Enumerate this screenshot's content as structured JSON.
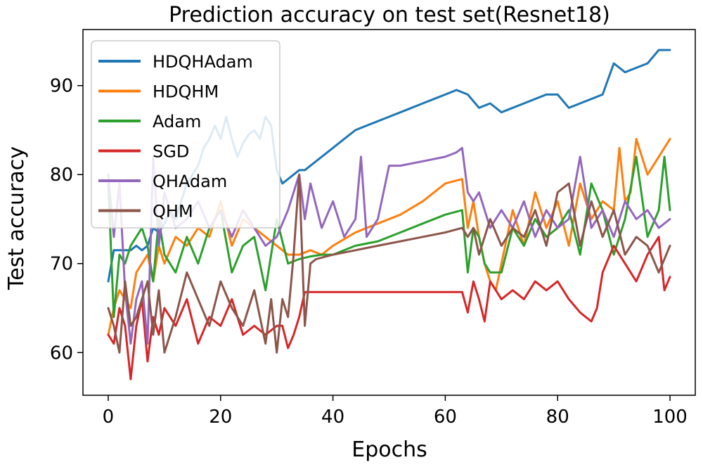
{
  "chart_data": {
    "type": "line",
    "title": "Prediction accuracy on test set(Resnet18)",
    "xlabel": "Epochs",
    "ylabel": "Test accuracy",
    "xlim": [
      -4.5,
      104.5
    ],
    "ylim": [
      55.2,
      96.3
    ],
    "xticks": [
      0,
      20,
      40,
      60,
      80,
      100
    ],
    "yticks": [
      60,
      70,
      80,
      90
    ],
    "grid": false,
    "legend_position": "upper-left",
    "series": [
      {
        "name": "HDQHAdam",
        "color": "#1f77b4",
        "x": [
          0,
          1,
          2,
          3,
          4,
          5,
          6,
          7,
          8,
          9,
          10,
          11,
          12,
          13,
          14,
          15,
          16,
          17,
          18,
          19,
          20,
          21,
          22,
          23,
          24,
          25,
          26,
          27,
          28,
          29,
          30,
          31,
          32,
          33,
          34,
          35,
          36,
          38,
          40,
          42,
          44,
          46,
          48,
          50,
          52,
          54,
          56,
          58,
          60,
          62,
          64,
          66,
          68,
          70,
          72,
          74,
          76,
          78,
          80,
          82,
          84,
          86,
          88,
          90,
          92,
          94,
          96,
          98,
          100
        ],
        "values": [
          68,
          71.5,
          71.5,
          71.5,
          71.5,
          72,
          71.5,
          72,
          74,
          73.5,
          74.5,
          76,
          75,
          77,
          79,
          80,
          81,
          83,
          84,
          85.5,
          84,
          86.5,
          84,
          82,
          83.5,
          84.5,
          85,
          84,
          86.5,
          85.5,
          80.5,
          79,
          79.5,
          80,
          80.5,
          80.5,
          81,
          82,
          83,
          84,
          85,
          85.5,
          86,
          86.5,
          87,
          87.5,
          88,
          88.5,
          89,
          89.5,
          89,
          87.5,
          88,
          87,
          87.5,
          88,
          88.5,
          89,
          89,
          87.5,
          88,
          88.5,
          89,
          92.5,
          91.5,
          92,
          92.5,
          94,
          94
        ]
      },
      {
        "name": "HDQHM",
        "color": "#ff7f0e",
        "x": [
          0,
          1,
          2,
          3,
          4,
          5,
          6,
          7,
          8,
          9,
          10,
          12,
          14,
          16,
          18,
          20,
          22,
          24,
          26,
          28,
          30,
          32,
          34,
          36,
          38,
          40,
          44,
          48,
          52,
          56,
          60,
          63,
          64,
          65,
          66,
          67,
          68,
          69,
          70,
          72,
          74,
          76,
          78,
          80,
          82,
          84,
          86,
          88,
          90,
          91,
          92,
          93,
          94,
          96,
          98,
          100
        ],
        "values": [
          62,
          65,
          67,
          66,
          65,
          69,
          70,
          71,
          68,
          72,
          70,
          73,
          72,
          74,
          73,
          77,
          72,
          75,
          74,
          73,
          72,
          71,
          71,
          71.5,
          71,
          72,
          73.5,
          74.5,
          75.5,
          77,
          79,
          79.5,
          74,
          77,
          73,
          70,
          68,
          67,
          70,
          76,
          72,
          78,
          74,
          77,
          72,
          79,
          75,
          77,
          76,
          83,
          77,
          78,
          84,
          80,
          82,
          84
        ]
      },
      {
        "name": "Adam",
        "color": "#2ca02c",
        "x": [
          0,
          1,
          2,
          3,
          4,
          5,
          6,
          7,
          8,
          9,
          10,
          12,
          14,
          16,
          18,
          20,
          22,
          24,
          26,
          28,
          30,
          32,
          34,
          36,
          38,
          40,
          44,
          48,
          52,
          56,
          60,
          63,
          64,
          65,
          66,
          67,
          68,
          70,
          72,
          74,
          76,
          78,
          80,
          82,
          84,
          86,
          88,
          90,
          92,
          94,
          96,
          98,
          99,
          100
        ],
        "values": [
          79,
          64,
          71,
          70,
          72,
          73,
          74,
          72,
          68,
          75,
          71,
          69,
          73,
          70,
          74,
          76,
          69,
          72,
          73,
          67,
          75,
          70,
          70.5,
          70.8,
          71,
          71,
          72,
          72.5,
          73.5,
          74.5,
          75.5,
          76,
          69,
          74,
          73,
          70,
          69,
          69,
          74,
          72,
          75,
          73,
          74,
          76,
          71,
          79,
          76,
          71,
          75,
          82,
          73,
          76,
          82,
          76
        ]
      },
      {
        "name": "SGD",
        "color": "#d62728",
        "x": [
          0,
          1,
          2,
          3,
          4,
          5,
          6,
          7,
          8,
          9,
          10,
          12,
          14,
          16,
          18,
          20,
          22,
          24,
          26,
          28,
          30,
          31,
          32,
          33,
          34,
          35,
          36,
          40,
          50,
          60,
          63,
          64,
          65,
          66,
          67,
          68,
          70,
          72,
          74,
          76,
          78,
          80,
          82,
          84,
          86,
          87,
          88,
          90,
          92,
          94,
          96,
          98,
          99,
          100
        ],
        "values": [
          62,
          61,
          65,
          63,
          57,
          63,
          66,
          59,
          64,
          62,
          65,
          63,
          66,
          61,
          64,
          63,
          66,
          62,
          63,
          62,
          63,
          63,
          60.5,
          62,
          64,
          66.8,
          66.8,
          66.8,
          66.8,
          66.8,
          66.8,
          64.5,
          68,
          66,
          63.5,
          68,
          66,
          67,
          66,
          68,
          67,
          68,
          66,
          64.5,
          63.5,
          65,
          69,
          72,
          70,
          68,
          71,
          73,
          67,
          68.5
        ]
      },
      {
        "name": "QHAdam",
        "color": "#9467bd",
        "x": [
          0,
          1,
          2,
          3,
          4,
          5,
          6,
          7,
          8,
          9,
          10,
          12,
          14,
          16,
          18,
          20,
          22,
          24,
          26,
          28,
          30,
          32,
          34,
          35,
          36,
          38,
          40,
          42,
          44,
          45,
          46,
          48,
          50,
          52,
          56,
          60,
          62,
          63,
          64,
          65,
          66,
          68,
          70,
          72,
          74,
          76,
          78,
          80,
          82,
          84,
          86,
          88,
          90,
          92,
          94,
          96,
          98,
          100
        ],
        "values": [
          80,
          73,
          79,
          67,
          61,
          66,
          68,
          61,
          82,
          72,
          78,
          74,
          75,
          77,
          74,
          76,
          73,
          76,
          74,
          72,
          73,
          76,
          80,
          75,
          79,
          74,
          77,
          73,
          75,
          82,
          73,
          75,
          81,
          81,
          81.5,
          82,
          82.5,
          83,
          78,
          77,
          78,
          74,
          76,
          74,
          77,
          73,
          76,
          74,
          75,
          82,
          74,
          76,
          73,
          77,
          75,
          76,
          74,
          75
        ]
      },
      {
        "name": "QHM",
        "color": "#8c564b",
        "x": [
          0,
          1,
          2,
          3,
          4,
          5,
          6,
          7,
          8,
          9,
          10,
          12,
          14,
          16,
          18,
          20,
          22,
          24,
          26,
          28,
          29,
          30,
          31,
          32,
          33,
          34,
          35,
          36,
          37,
          40,
          44,
          48,
          52,
          56,
          60,
          63,
          64,
          65,
          66,
          68,
          70,
          72,
          74,
          76,
          78,
          80,
          82,
          84,
          86,
          88,
          90,
          92,
          94,
          96,
          98,
          100
        ],
        "values": [
          65,
          63,
          60,
          68,
          63,
          64,
          66,
          68,
          62,
          67,
          60,
          64,
          69,
          66,
          63,
          68,
          65,
          63,
          67,
          61,
          66,
          60,
          66,
          64,
          71,
          80,
          63,
          70,
          70.5,
          71,
          71.5,
          72,
          72.5,
          73,
          73.5,
          74,
          73,
          74,
          71,
          75,
          72,
          74,
          73,
          76,
          72,
          78,
          79,
          72,
          77,
          73,
          76,
          71,
          73,
          72,
          69,
          72
        ]
      }
    ]
  }
}
